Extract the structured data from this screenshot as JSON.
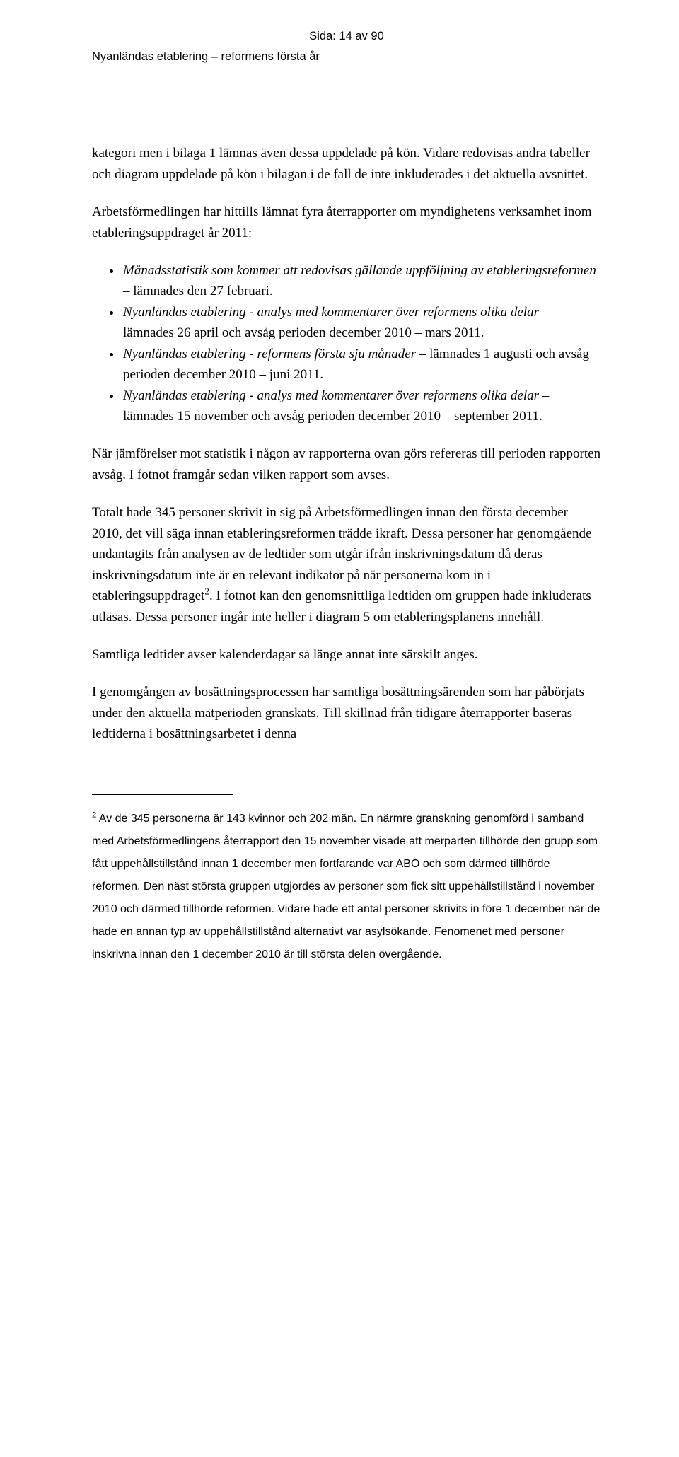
{
  "header": {
    "page_indicator": "Sida: 14 av 90",
    "doc_title": "Nyanländas etablering – reformens första år"
  },
  "paragraphs": {
    "p1": "kategori men i bilaga 1 lämnas även dessa uppdelade på kön. Vidare redovisas andra tabeller och diagram uppdelade på kön i bilagan i de fall de inte inkluderades i det aktuella avsnittet.",
    "p2": "Arbetsförmedlingen har hittills lämnat fyra återrapporter om myndighetens verksamhet inom etableringsuppdraget år 2011:",
    "p3_a": "När jämförelser mot statistik i någon av rapporterna ovan görs refereras till perioden rapporten avsåg. I fotnot framgår sedan vilken rapport som avses.",
    "p4_a": "Totalt hade 345 personer skrivit in sig på Arbetsförmedlingen innan den första december 2010, det vill säga innan etableringsreformen trädde ikraft. Dessa personer har genomgående undantagits från analysen av de ledtider som utgår ifrån inskrivningsdatum då deras inskrivningsdatum inte är en relevant indikator på när personerna kom in i etableringsuppdraget",
    "p4_sup": "2",
    "p4_b": ". I fotnot kan den genomsnittliga ledtiden om gruppen hade inkluderats utläsas. Dessa personer ingår inte heller i diagram 5 om etableringsplanens innehåll.",
    "p5": "Samtliga ledtider avser kalenderdagar så länge annat inte särskilt anges.",
    "p6": "I genomgången av bosättningsprocessen har samtliga bosättningsärenden som har påbörjats under den aktuella mätperioden granskats. Till skillnad från tidigare återrapporter baseras ledtiderna i bosättningsarbetet i denna"
  },
  "bullets": {
    "b1_i": "Månadsstatistik som kommer att redovisas gällande uppföljning av etableringsreformen",
    "b1_r": " – lämnades den 27 februari.",
    "b2_i": "Nyanländas etablering - analys med kommentarer över reformens olika delar",
    "b2_r": " – lämnades 26 april och avsåg perioden december 2010 – mars 2011.",
    "b3_i": "Nyanländas etablering - reformens första sju månader",
    "b3_r": " – lämnades 1 augusti och avsåg perioden december 2010 – juni 2011.",
    "b4_i": "Nyanländas etablering - analys med kommentarer över reformens olika delar",
    "b4_r": " – lämnades 15 november och avsåg perioden december 2010 – september 2011."
  },
  "footnote": {
    "marker": "2",
    "text": " Av de 345 personerna är 143 kvinnor och 202 män. En närmre granskning genomförd i samband med Arbetsförmedlingens återrapport den 15 november visade att merparten tillhörde den grupp som fått uppehållstillstånd innan 1 december men fortfarande var ABO och som därmed tillhörde reformen. Den näst största gruppen utgjordes av personer som fick sitt uppehållstillstånd i november 2010 och därmed tillhörde reformen. Vidare hade ett antal personer skrivits in före 1 december när de hade en annan typ av uppehållstillstånd alternativt var asylsökande. Fenomenet med personer inskrivna innan den 1 december 2010 är till största delen övergående."
  }
}
